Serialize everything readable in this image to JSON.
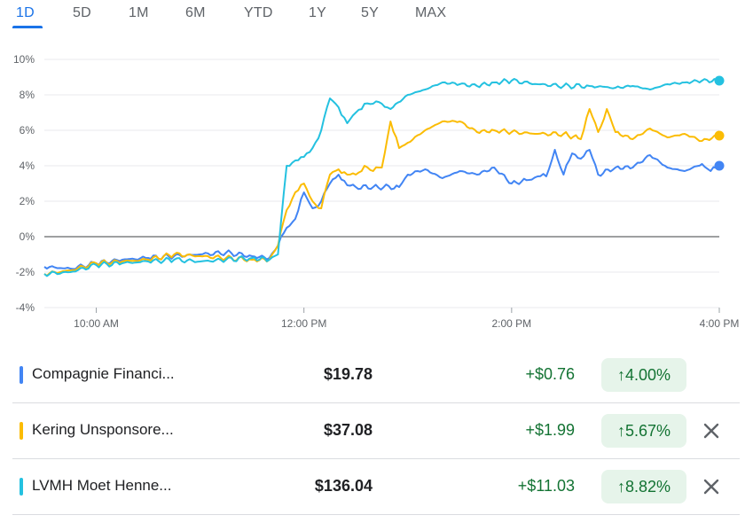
{
  "tabs": [
    "1D",
    "5D",
    "1M",
    "6M",
    "YTD",
    "1Y",
    "5Y",
    "MAX"
  ],
  "active_tab": "1D",
  "chart_data": {
    "type": "line",
    "ylim": [
      -4,
      10
    ],
    "yticks": [
      10,
      8,
      6,
      4,
      2,
      0,
      -2,
      -4
    ],
    "ytick_labels": [
      "10%",
      "8%",
      "6%",
      "4%",
      "2%",
      "0%",
      "-2%",
      "-4%"
    ],
    "x_range": [
      "9:30",
      "16:00"
    ],
    "xticks": [
      "10:00",
      "12:00",
      "14:00",
      "16:00"
    ],
    "xtick_labels": [
      "10:00 AM",
      "12:00 PM",
      "2:00 PM",
      "4:00 PM"
    ],
    "baseline": 0,
    "series": [
      {
        "name": "Compagnie Financi...",
        "color": "#4285f4",
        "points": [
          [
            "9:30",
            -1.7
          ],
          [
            "9:45",
            -1.8
          ],
          [
            "10:00",
            -1.5
          ],
          [
            "10:15",
            -1.3
          ],
          [
            "10:30",
            -1.2
          ],
          [
            "10:45",
            -1.1
          ],
          [
            "11:00",
            -1.0
          ],
          [
            "11:15",
            -0.9
          ],
          [
            "11:30",
            -1.1
          ],
          [
            "11:40",
            -1.2
          ],
          [
            "11:45",
            -0.5
          ],
          [
            "11:50",
            0.5
          ],
          [
            "11:55",
            1.0
          ],
          [
            "12:00",
            2.5
          ],
          [
            "12:05",
            1.6
          ],
          [
            "12:10",
            2.0
          ],
          [
            "12:15",
            3.0
          ],
          [
            "12:20",
            3.5
          ],
          [
            "12:25",
            2.9
          ],
          [
            "12:30",
            2.8
          ],
          [
            "12:40",
            2.8
          ],
          [
            "12:55",
            2.8
          ],
          [
            "13:00",
            3.5
          ],
          [
            "13:10",
            3.8
          ],
          [
            "13:20",
            3.3
          ],
          [
            "13:30",
            3.7
          ],
          [
            "13:40",
            3.5
          ],
          [
            "13:50",
            3.9
          ],
          [
            "14:00",
            3.0
          ],
          [
            "14:10",
            3.2
          ],
          [
            "14:15",
            3.4
          ],
          [
            "14:20",
            3.4
          ],
          [
            "14:25",
            4.9
          ],
          [
            "14:30",
            3.5
          ],
          [
            "14:35",
            4.7
          ],
          [
            "14:40",
            4.4
          ],
          [
            "14:45",
            4.9
          ],
          [
            "14:50",
            3.5
          ],
          [
            "15:00",
            3.9
          ],
          [
            "15:10",
            3.9
          ],
          [
            "15:20",
            4.6
          ],
          [
            "15:30",
            3.9
          ],
          [
            "15:40",
            3.7
          ],
          [
            "15:50",
            4.1
          ],
          [
            "15:55",
            3.7
          ],
          [
            "16:00",
            4.0
          ]
        ]
      },
      {
        "name": "Kering Unsponsore...",
        "color": "#fbbc04",
        "points": [
          [
            "9:30",
            -2.1
          ],
          [
            "9:45",
            -1.9
          ],
          [
            "10:00",
            -1.5
          ],
          [
            "10:15",
            -1.4
          ],
          [
            "10:30",
            -1.3
          ],
          [
            "10:45",
            -1.0
          ],
          [
            "11:00",
            -1.1
          ],
          [
            "11:15",
            -1.2
          ],
          [
            "11:30",
            -1.3
          ],
          [
            "11:40",
            -1.3
          ],
          [
            "11:45",
            -0.5
          ],
          [
            "11:50",
            1.5
          ],
          [
            "11:55",
            2.5
          ],
          [
            "12:00",
            3.0
          ],
          [
            "12:05",
            2.0
          ],
          [
            "12:10",
            1.6
          ],
          [
            "12:15",
            3.5
          ],
          [
            "12:20",
            3.8
          ],
          [
            "12:25",
            3.5
          ],
          [
            "12:30",
            3.5
          ],
          [
            "12:35",
            4.0
          ],
          [
            "12:40",
            3.7
          ],
          [
            "12:45",
            3.9
          ],
          [
            "12:50",
            6.5
          ],
          [
            "12:55",
            5.0
          ],
          [
            "13:00",
            5.3
          ],
          [
            "13:10",
            6.0
          ],
          [
            "13:20",
            6.5
          ],
          [
            "13:30",
            6.5
          ],
          [
            "13:40",
            5.9
          ],
          [
            "13:50",
            6.0
          ],
          [
            "14:00",
            5.9
          ],
          [
            "14:15",
            5.8
          ],
          [
            "14:30",
            5.8
          ],
          [
            "14:40",
            5.5
          ],
          [
            "14:45",
            7.2
          ],
          [
            "14:50",
            5.9
          ],
          [
            "14:55",
            7.2
          ],
          [
            "15:00",
            5.9
          ],
          [
            "15:10",
            5.5
          ],
          [
            "15:20",
            6.1
          ],
          [
            "15:30",
            5.6
          ],
          [
            "15:40",
            5.8
          ],
          [
            "15:50",
            5.4
          ],
          [
            "16:00",
            5.7
          ]
        ]
      },
      {
        "name": "LVMH Moet Henne...",
        "color": "#24c1e0",
        "points": [
          [
            "9:30",
            -2.1
          ],
          [
            "9:45",
            -2.0
          ],
          [
            "10:00",
            -1.6
          ],
          [
            "10:15",
            -1.5
          ],
          [
            "10:30",
            -1.4
          ],
          [
            "10:45",
            -1.3
          ],
          [
            "11:00",
            -1.4
          ],
          [
            "11:15",
            -1.3
          ],
          [
            "11:30",
            -1.2
          ],
          [
            "11:40",
            -1.3
          ],
          [
            "11:45",
            -1.0
          ],
          [
            "11:50",
            4.0
          ],
          [
            "11:55",
            4.3
          ],
          [
            "12:00",
            4.5
          ],
          [
            "12:05",
            5.0
          ],
          [
            "12:10",
            6.0
          ],
          [
            "12:15",
            7.8
          ],
          [
            "12:20",
            7.3
          ],
          [
            "12:25",
            6.4
          ],
          [
            "12:30",
            7.0
          ],
          [
            "12:35",
            7.5
          ],
          [
            "12:40",
            7.5
          ],
          [
            "12:45",
            7.5
          ],
          [
            "12:50",
            7.2
          ],
          [
            "13:00",
            8.0
          ],
          [
            "13:10",
            8.3
          ],
          [
            "13:20",
            8.7
          ],
          [
            "13:30",
            8.6
          ],
          [
            "13:40",
            8.5
          ],
          [
            "13:50",
            8.7
          ],
          [
            "14:00",
            8.8
          ],
          [
            "14:15",
            8.6
          ],
          [
            "14:30",
            8.5
          ],
          [
            "14:45",
            8.5
          ],
          [
            "15:00",
            8.4
          ],
          [
            "15:10",
            8.5
          ],
          [
            "15:20",
            8.3
          ],
          [
            "15:30",
            8.6
          ],
          [
            "15:40",
            8.7
          ],
          [
            "15:50",
            8.8
          ],
          [
            "16:00",
            8.8
          ]
        ]
      }
    ]
  },
  "rows": [
    {
      "name": "Compagnie Financi...",
      "price": "$19.78",
      "change": "+$0.76",
      "pct": "4.00%",
      "color": "#4285f4",
      "closable": false
    },
    {
      "name": "Kering Unsponsore...",
      "price": "$37.08",
      "change": "+$1.99",
      "pct": "5.67%",
      "color": "#fbbc04",
      "closable": true
    },
    {
      "name": "LVMH Moet Henne...",
      "price": "$136.04",
      "change": "+$11.03",
      "pct": "8.82%",
      "color": "#24c1e0",
      "closable": true
    }
  ]
}
